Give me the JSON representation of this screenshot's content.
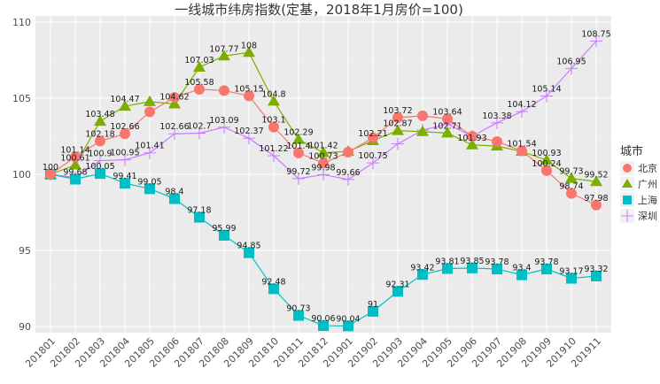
{
  "chart_data": {
    "type": "line",
    "title": "一线城市纬房指数(定基，2018年1月房价=100)",
    "xlabel": "",
    "ylabel": "",
    "ylim": [
      89.6,
      110.4
    ],
    "yticks": [
      90,
      95,
      100,
      105,
      110
    ],
    "grid": true,
    "legend": {
      "title": "城市",
      "position": "right"
    },
    "categories": [
      "201801",
      "201802",
      "201803",
      "201804",
      "201805",
      "201806",
      "201807",
      "201808",
      "201809",
      "201810",
      "201811",
      "201812",
      "201901",
      "201902",
      "201903",
      "201904",
      "201905",
      "201906",
      "201907",
      "201908",
      "201909",
      "201910",
      "201911"
    ],
    "series": [
      {
        "name": "北京",
        "marker": "circle",
        "color": "#F8766D",
        "values": [
          100,
          101.14,
          102.18,
          102.66,
          104.1,
          105.05,
          105.58,
          105.5,
          105.15,
          103.1,
          101.4,
          100.73,
          101.45,
          102.4,
          103.72,
          103.84,
          103.64,
          102.5,
          102.15,
          101.54,
          100.24,
          98.74,
          97.98
        ],
        "labels": [
          "100",
          "101.14",
          "102.18",
          "102.66",
          null,
          null,
          "105.58",
          null,
          "105.15",
          "103.1",
          "101.4",
          "100.73",
          null,
          null,
          "103.72",
          null,
          "103.64",
          null,
          null,
          "101.54",
          "100.24",
          "98.74",
          "97.98"
        ]
      },
      {
        "name": "广州",
        "marker": "triangle",
        "color": "#7CAE00",
        "values": [
          100,
          100.61,
          103.48,
          104.47,
          104.77,
          104.62,
          107.03,
          107.77,
          108,
          104.8,
          102.29,
          101.42,
          101.5,
          102.21,
          102.87,
          102.8,
          102.71,
          101.93,
          101.85,
          101.5,
          100.93,
          99.73,
          99.52
        ],
        "labels": [
          null,
          "100.61",
          "103.48",
          "104.47",
          null,
          "104.62",
          "107.03",
          "107.77",
          "108",
          "104.8",
          "102.29",
          "101.42",
          null,
          "102.21",
          "102.87",
          null,
          "102.71",
          "101.93",
          null,
          null,
          "100.93",
          "99.73",
          "99.52"
        ]
      },
      {
        "name": "上海",
        "marker": "square",
        "color": "#00BFC4",
        "values": [
          100,
          99.68,
          100.05,
          99.41,
          99.05,
          98.4,
          97.18,
          95.99,
          94.85,
          92.48,
          90.73,
          90.06,
          90.04,
          91,
          92.31,
          93.42,
          93.81,
          93.85,
          93.78,
          93.4,
          93.78,
          93.17,
          93.32
        ],
        "labels": [
          null,
          "99.68",
          "100.05",
          "99.41",
          "99.05",
          "98.4",
          "97.18",
          "95.99",
          "94.85",
          "92.48",
          "90.73",
          "90.06",
          "90.04",
          "91",
          "92.31",
          "93.42",
          "93.81",
          "93.85",
          "93.78",
          "93.4",
          "93.78",
          "93.17",
          "93.32"
        ]
      },
      {
        "name": "深圳",
        "marker": "cross",
        "color": "#C77CFF",
        "values": [
          100,
          99.8,
          100.9,
          100.95,
          101.41,
          102.66,
          102.7,
          103.09,
          102.37,
          101.22,
          99.72,
          99.98,
          99.66,
          100.75,
          102.0,
          102.9,
          103.3,
          102.5,
          103.38,
          104.12,
          105.14,
          106.95,
          108.75
        ],
        "labels": [
          null,
          null,
          "100.9",
          "100.95",
          "101.41",
          "102.66",
          "102.7",
          "103.09",
          "102.37",
          "101.22",
          "99.72",
          "99.98",
          "99.66",
          "100.75",
          null,
          null,
          null,
          null,
          "103.38",
          "104.12",
          "105.14",
          "106.95",
          "108.75"
        ]
      }
    ]
  }
}
